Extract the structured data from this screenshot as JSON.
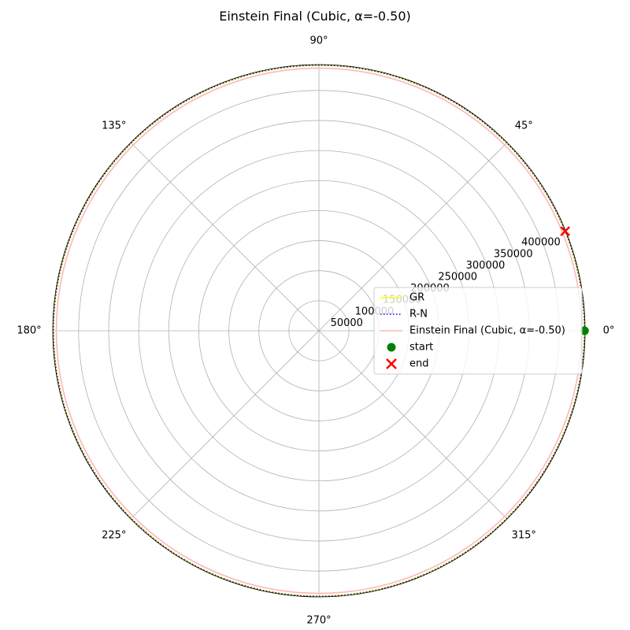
{
  "chart_data": {
    "type": "line",
    "projection": "polar",
    "title": "Einstein Final (Cubic, α=-0.50)",
    "angle_ticks": [
      "0°",
      "45°",
      "90°",
      "135°",
      "180°",
      "225°",
      "270°",
      "315°"
    ],
    "radial_ticks": [
      "50000",
      "100000",
      "150000",
      "200000",
      "250000",
      "300000",
      "350000",
      "400000"
    ],
    "radial_tick_values": [
      50000,
      100000,
      150000,
      200000,
      250000,
      300000,
      350000,
      400000
    ],
    "rmax": 443000,
    "grid": true,
    "legend_position": "center-right",
    "series": [
      {
        "name": "GR",
        "color": "#ffff00",
        "style": "solid",
        "theta_deg": [
          0,
          360
        ],
        "r": [
          442000,
          442000
        ]
      },
      {
        "name": "R-N",
        "color": "#0000ff",
        "style": "dotted",
        "theta_deg": [
          0,
          360
        ],
        "r": [
          442000,
          442000
        ]
      },
      {
        "name": "Einstein Final (Cubic, α=-0.50)",
        "color": "#ffb6b6",
        "style": "solid",
        "theta_deg": [
          0,
          360
        ],
        "r": [
          437000,
          437000
        ]
      }
    ],
    "markers": [
      {
        "name": "start",
        "color": "#008000",
        "shape": "circle",
        "theta_deg": 0,
        "r": 442000
      },
      {
        "name": "end",
        "color": "#ff0000",
        "shape": "x",
        "theta_deg": 22,
        "r": 442000
      }
    ]
  }
}
